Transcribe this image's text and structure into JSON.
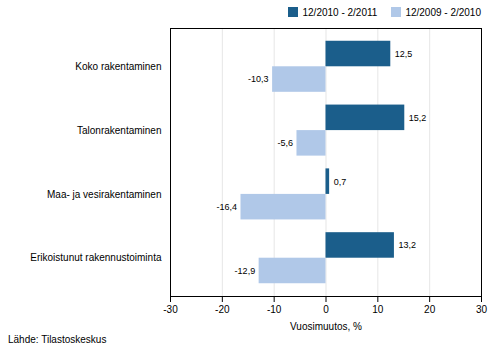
{
  "chart_data": {
    "type": "bar",
    "orientation": "horizontal",
    "xlabel": "Vuosimuutos, %",
    "annotations": [
      "Lähde: Tilastoskeskus"
    ],
    "categories": [
      "Erikoistunut rakennustoiminta",
      "Maa- ja vesirakentaminen",
      "Talonrakentaminen",
      "Koko rakentaminen"
    ],
    "series": [
      {
        "name": "12/2010 - 2/2011",
        "color": "#1B5E8B",
        "values": [
          13.2,
          0.7,
          15.2,
          12.5
        ],
        "value_labels": [
          "13,2",
          "0,7",
          "15,2",
          "12,5"
        ]
      },
      {
        "name": "12/2009 - 2/2010",
        "color": "#B0C8E8",
        "values": [
          -12.9,
          -16.4,
          -5.6,
          -10.3
        ],
        "value_labels": [
          "-12,9",
          "-16,4",
          "-5,6",
          "-10,3"
        ]
      }
    ],
    "xlim": [
      -30,
      30
    ],
    "xticks": [
      -30,
      -20,
      -10,
      0,
      10,
      20,
      30
    ],
    "grid": true,
    "legend": "upper right",
    "data_labels": true
  }
}
